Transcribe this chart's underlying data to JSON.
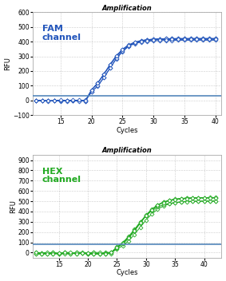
{
  "title": "Amplification",
  "fam_label": "FAM\nchannel",
  "hex_label": "HEX\nchannel",
  "xlabel": "Cycles",
  "ylabel": "RFU",
  "fam_color": "#2255bb",
  "hex_color": "#22aa22",
  "threshold_color": "#5588bb",
  "fam_ylim": [
    -100,
    600
  ],
  "hex_ylim": [
    -50,
    950
  ],
  "fam_yticks": [
    -100,
    0,
    100,
    200,
    300,
    400,
    500,
    600
  ],
  "hex_yticks": [
    0,
    100,
    200,
    300,
    400,
    500,
    600,
    700,
    800,
    900
  ],
  "fam_xlim": [
    10.5,
    41
  ],
  "hex_xlim": [
    10.5,
    43
  ],
  "fam_xticks": [
    15,
    20,
    25,
    30,
    35,
    40
  ],
  "hex_xticks": [
    15,
    20,
    25,
    30,
    35,
    40
  ],
  "fam_threshold": 30,
  "hex_threshold": 80,
  "bg_color": "#ffffff",
  "title_fontsize": 6,
  "label_fontsize": 6,
  "channel_fontsize": 8,
  "tick_fontsize": 5.5
}
